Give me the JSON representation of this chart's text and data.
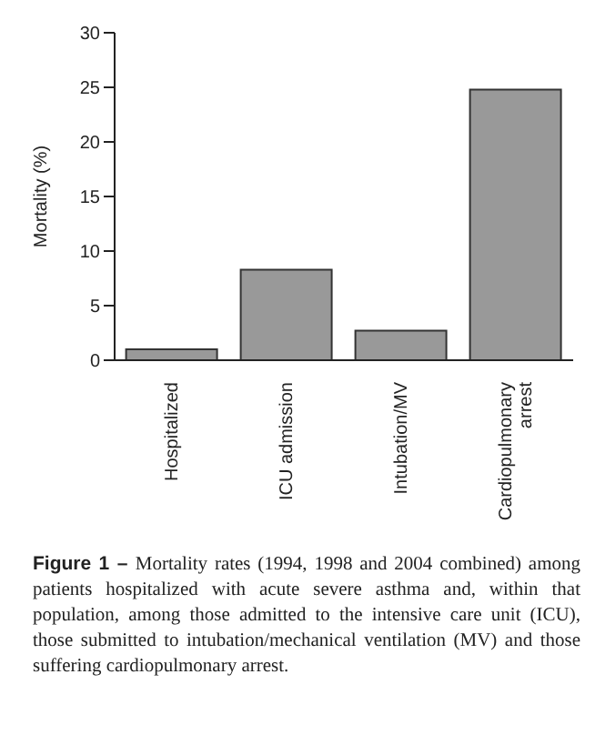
{
  "chart_data": {
    "type": "bar",
    "ylabel": "Mortality (%)",
    "categories": [
      "Hospitalized",
      "ICU admission",
      "Intubation/MV",
      "Cardiopulmonary arrest"
    ],
    "values": [
      1.0,
      8.3,
      2.7,
      24.8
    ],
    "color": "#999999",
    "ylim": [
      0,
      30
    ],
    "yticks": [
      0,
      5,
      10,
      15,
      20,
      25,
      30
    ],
    "grid": false,
    "legend": false,
    "annotations": [
      "Figure 1 –",
      "Mortality rates (1994, 1998 and 2004 combined) among patients hospitalized with acute severe asthma and, within that population, among those admitted to the intensive care unit (ICU), those submitted to intubation/mechanical ventilation (MV) and those suffering cardiopulmonary arrest."
    ]
  }
}
